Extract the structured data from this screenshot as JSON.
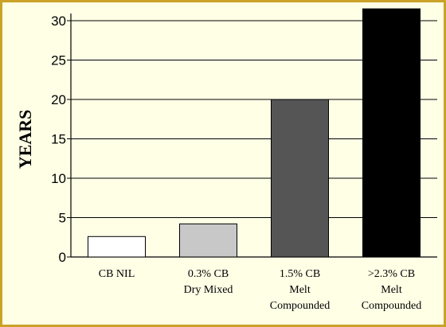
{
  "chart_data": {
    "type": "bar",
    "title": "",
    "ylabel": "YEARS",
    "xlabel": "",
    "ylim": [
      0,
      31
    ],
    "yticks": [
      0,
      5,
      10,
      15,
      20,
      25,
      30
    ],
    "grid": true,
    "categories": [
      [
        "CB NIL"
      ],
      [
        "0.3% CB",
        "Dry Mixed"
      ],
      [
        "1.5% CB",
        "Melt",
        "Compounded"
      ],
      [
        ">2.3% CB",
        "Melt",
        "Compounded"
      ]
    ],
    "values": [
      2.6,
      4.2,
      20,
      31.5
    ],
    "colors": [
      "#ffffff",
      "#c8c8c8",
      "#555555",
      "#000000"
    ]
  },
  "frame": {
    "background": "#ffffe6",
    "border": "#c9a227"
  }
}
